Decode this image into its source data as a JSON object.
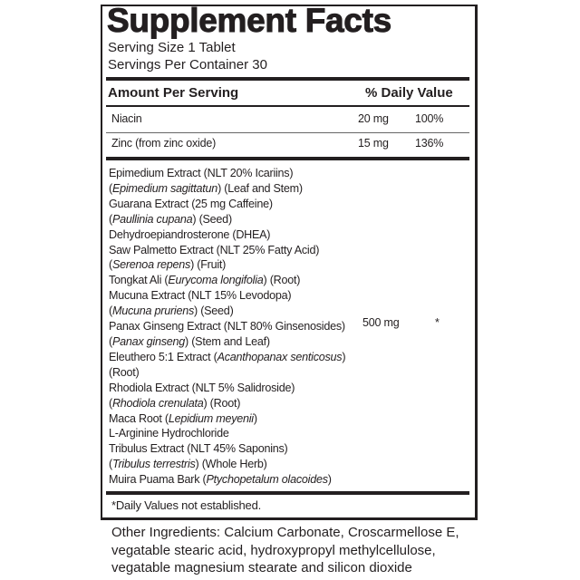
{
  "title": "Supplement Facts",
  "serving_size": "Serving Size 1 Tablet",
  "servings_per_container": "Servings Per Container 30",
  "header": {
    "amount": "Amount Per Serving",
    "daily_value": "% Daily Value"
  },
  "nutrients": [
    {
      "name": "Niacin",
      "amount": "20 mg",
      "dv": "100%"
    },
    {
      "name": "Zinc (from zinc oxide)",
      "amount": "15 mg",
      "dv": "136%"
    }
  ],
  "blend": {
    "amount": "500 mg",
    "dv": "*",
    "lines": [
      [
        [
          "Epimedium Extract (NLT 20% Icariins)",
          false
        ]
      ],
      [
        [
          "(",
          false
        ],
        [
          "Epimedium sagittatun",
          true
        ],
        [
          ") (Leaf and Stem)",
          false
        ]
      ],
      [
        [
          "Guarana Extract (25 mg Caffeine)",
          false
        ]
      ],
      [
        [
          "(",
          false
        ],
        [
          "Paullinia cupana",
          true
        ],
        [
          ")  (Seed)",
          false
        ]
      ],
      [
        [
          "Dehydroepiandrosterone (DHEA)",
          false
        ]
      ],
      [
        [
          "Saw Palmetto Extract (NLT 25% Fatty Acid)",
          false
        ]
      ],
      [
        [
          "(",
          false
        ],
        [
          "Serenoa repens",
          true
        ],
        [
          ") (Fruit)",
          false
        ]
      ],
      [
        [
          "Tongkat Ali (",
          false
        ],
        [
          "Eurycoma longifolia",
          true
        ],
        [
          ") (Root)",
          false
        ]
      ],
      [
        [
          "Mucuna Extract (NLT 15% Levodopa)",
          false
        ]
      ],
      [
        [
          "(",
          false
        ],
        [
          "Mucuna pruriens",
          true
        ],
        [
          ") (Seed)",
          false
        ]
      ],
      [
        [
          "Panax Ginseng Extract (NLT 80% Ginsenosides)",
          false
        ]
      ],
      [
        [
          "(",
          false
        ],
        [
          "Panax ginseng",
          true
        ],
        [
          ") (Stem and Leaf)",
          false
        ]
      ],
      [
        [
          "Eleuthero 5:1 Extract (",
          false
        ],
        [
          "Acanthopanax senticosus",
          true
        ],
        [
          ")",
          false
        ]
      ],
      [
        [
          "(Root)",
          false
        ]
      ],
      [
        [
          "Rhodiola Extract (NLT 5% Salidroside)",
          false
        ]
      ],
      [
        [
          "(",
          false
        ],
        [
          "Rhodiola crenulata",
          true
        ],
        [
          ") (Root)",
          false
        ]
      ],
      [
        [
          "Maca Root (",
          false
        ],
        [
          "Lepidium meyenii",
          true
        ],
        [
          ")",
          false
        ]
      ],
      [
        [
          "L-Arginine Hydrochloride",
          false
        ]
      ],
      [
        [
          "Tribulus Extract (NLT 45% Saponins)",
          false
        ]
      ],
      [
        [
          "(",
          false
        ],
        [
          "Tribulus terrestris",
          true
        ],
        [
          ") (Whole Herb)",
          false
        ]
      ],
      [
        [
          "Muira Puama Bark (",
          false
        ],
        [
          "Ptychopetalum olacoides",
          true
        ],
        [
          ")",
          false
        ]
      ]
    ]
  },
  "footnote": "*Daily Values not established.",
  "other_ingredients": [
    "Other Ingredients: Calcium Carbonate, Croscarmellose E,",
    "vegatable stearic acid, hydroxypropyl methylcellulose,",
    "vegatable magnesium stearate and silicon dioxide"
  ]
}
